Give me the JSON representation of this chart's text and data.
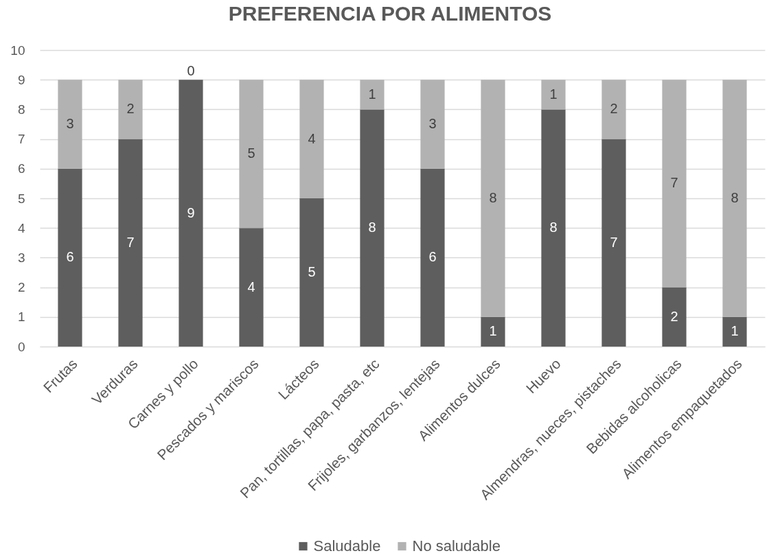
{
  "chart_data": {
    "type": "bar",
    "title": "PREFERENCIA POR ALIMENTOS",
    "categories": [
      "Frutas",
      "Verduras",
      "Carnes y pollo",
      "Pescados y mariscos",
      "Lácteos",
      "Pan, tortillas, papa, pasta, etc",
      "Frijoles, garbanzos, lentejas",
      "Alimentos dulces",
      "Huevo",
      "Almendras, nueces, pistaches",
      "Bebidas alcoholicas",
      "Alimentos empaquetados"
    ],
    "stacked": true,
    "series": [
      {
        "name": "Saludable",
        "color": "#5e5e5e",
        "values": [
          6,
          7,
          9,
          4,
          5,
          8,
          6,
          1,
          8,
          7,
          2,
          1
        ]
      },
      {
        "name": "No saludable",
        "color": "#b2b2b2",
        "values": [
          3,
          2,
          0,
          5,
          4,
          1,
          3,
          8,
          1,
          2,
          7,
          8
        ]
      }
    ],
    "ylim": [
      0,
      10
    ],
    "yticks": [
      0,
      1,
      2,
      3,
      4,
      5,
      6,
      7,
      8,
      9,
      10
    ],
    "grid": "y",
    "legend": "bottom",
    "data_labels": true
  }
}
